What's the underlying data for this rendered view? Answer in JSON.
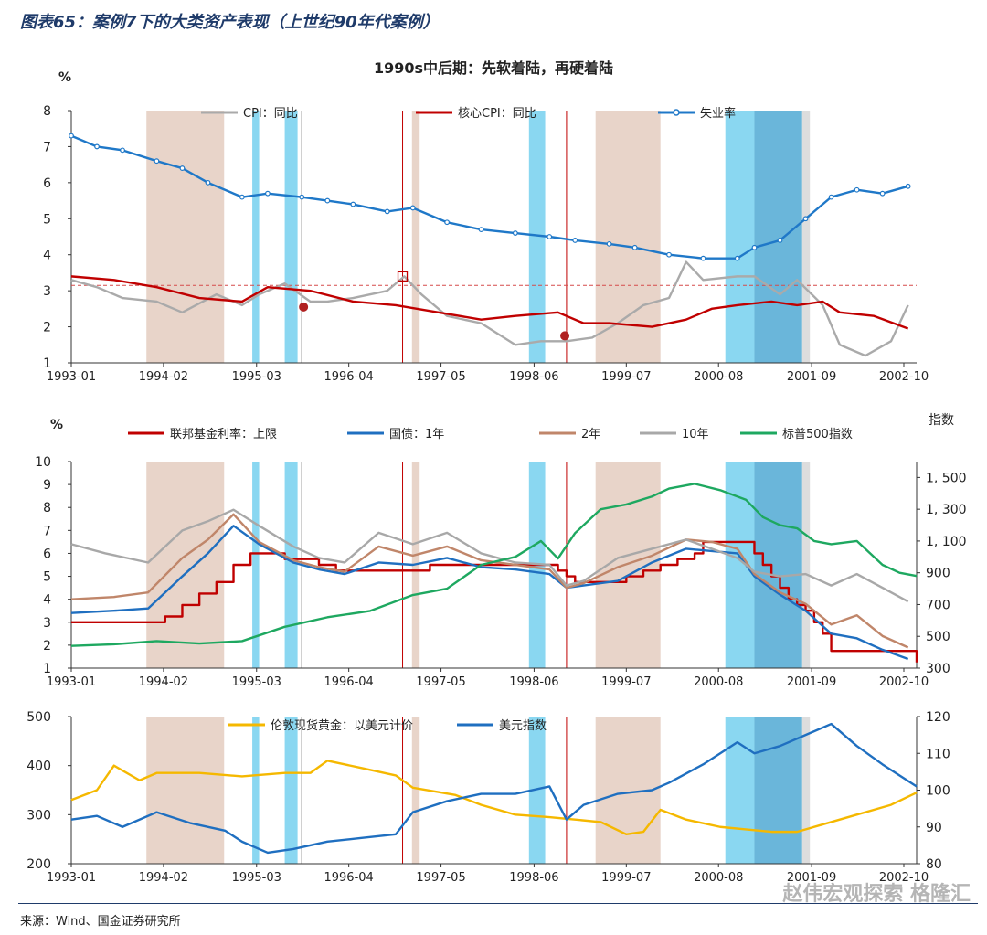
{
  "figure_title": "图表65：案例7下的大类资产表现（上世纪90年代案例）",
  "source": "来源：Wind、国金证券研究所",
  "watermark": "赵伟宏观探索 格隆汇",
  "colors": {
    "cpi": "#aaaaaa",
    "core_cpi": "#c00000",
    "unemp": "#1f78c8",
    "fed": "#c00000",
    "t1": "#1f6fc0",
    "t2": "#c0866a",
    "t10": "#a8a8a8",
    "sp500": "#1ea860",
    "gold": "#f5b800",
    "dxy": "#1f6fc0",
    "band_tan": "#e6cfc3",
    "band_blue": "#7dd3f0",
    "band_blue_dark": "#5aaed6",
    "band_gray": "#d9d9d9"
  },
  "chart_data": [
    {
      "type": "line",
      "title": "1990s中后期：先软着陆，再硬着陆",
      "ylabel": "%",
      "ylim": [
        1,
        8
      ],
      "x_ticks": [
        "1993-01",
        "1994-02",
        "1995-03",
        "1996-04",
        "1997-05",
        "1998-06",
        "1999-07",
        "2000-08",
        "2001-09",
        "2002-10"
      ],
      "y_ticks": [
        "1",
        "2",
        "3",
        "4",
        "5",
        "6",
        "7",
        "8"
      ],
      "reference_line": 3.15,
      "series": [
        {
          "name": "CPI：同比",
          "key": "cpi",
          "x": [
            1993.0,
            1993.3,
            1993.6,
            1994.0,
            1994.3,
            1994.7,
            1995.0,
            1995.2,
            1995.5,
            1995.8,
            1996.0,
            1996.3,
            1996.7,
            1996.9,
            1997.1,
            1997.4,
            1997.8,
            1998.2,
            1998.5,
            1998.8,
            1999.1,
            1999.4,
            1999.7,
            2000.0,
            2000.2,
            2000.4,
            2000.8,
            2001.0,
            2001.3,
            2001.5,
            2001.8,
            2002.0,
            2002.3,
            2002.6,
            2002.8
          ],
          "y": [
            3.3,
            3.1,
            2.8,
            2.7,
            2.4,
            2.9,
            2.6,
            2.9,
            3.2,
            2.7,
            2.7,
            2.8,
            3.0,
            3.4,
            2.9,
            2.3,
            2.1,
            1.5,
            1.6,
            1.6,
            1.7,
            2.1,
            2.6,
            2.8,
            3.8,
            3.3,
            3.4,
            3.4,
            2.9,
            3.3,
            2.6,
            1.5,
            1.2,
            1.6,
            2.6
          ]
        },
        {
          "name": "核心CPI：同比",
          "key": "core_cpi",
          "x": [
            1993.0,
            1993.5,
            1994.0,
            1994.5,
            1995.0,
            1995.3,
            1995.8,
            1996.3,
            1996.8,
            1997.3,
            1997.8,
            1998.2,
            1998.7,
            1999.0,
            1999.3,
            1999.8,
            2000.2,
            2000.5,
            2000.8,
            2001.2,
            2001.5,
            2001.8,
            2002.0,
            2002.4,
            2002.8
          ],
          "y": [
            3.4,
            3.3,
            3.1,
            2.8,
            2.7,
            3.1,
            3.0,
            2.7,
            2.6,
            2.4,
            2.2,
            2.3,
            2.4,
            2.1,
            2.1,
            2.0,
            2.2,
            2.5,
            2.6,
            2.7,
            2.6,
            2.7,
            2.4,
            2.3,
            1.95
          ]
        },
        {
          "name": "失业率",
          "key": "unemp",
          "x": [
            1993.0,
            1993.3,
            1993.6,
            1994.0,
            1994.3,
            1994.6,
            1995.0,
            1995.3,
            1995.7,
            1996.0,
            1996.3,
            1996.7,
            1997.0,
            1997.4,
            1997.8,
            1998.2,
            1998.6,
            1998.9,
            1999.3,
            1999.6,
            2000.0,
            2000.4,
            2000.8,
            2001.0,
            2001.3,
            2001.6,
            2001.9,
            2002.2,
            2002.5,
            2002.8
          ],
          "y": [
            7.3,
            7.0,
            6.9,
            6.6,
            6.4,
            6.0,
            5.6,
            5.7,
            5.6,
            5.5,
            5.4,
            5.2,
            5.3,
            4.9,
            4.7,
            4.6,
            4.5,
            4.4,
            4.3,
            4.2,
            4.0,
            3.9,
            3.9,
            4.2,
            4.4,
            5.0,
            5.6,
            5.8,
            5.7,
            5.9
          ]
        }
      ]
    },
    {
      "type": "line",
      "ylabel": "%",
      "y2label": "指数",
      "ylim": [
        1,
        10
      ],
      "y2lim": [
        300,
        1600
      ],
      "x_ticks": [
        "1993-01",
        "1994-02",
        "1995-03",
        "1996-04",
        "1997-05",
        "1998-06",
        "1999-07",
        "2000-08",
        "2001-09",
        "2002-10"
      ],
      "y_ticks": [
        "1",
        "2",
        "3",
        "4",
        "5",
        "6",
        "7",
        "8",
        "9",
        "10"
      ],
      "y2_ticks": [
        "300",
        "500",
        "700",
        "900",
        "1, 100",
        "1, 300",
        "1, 500"
      ],
      "series": [
        {
          "name": "联邦基金利率：上限",
          "key": "fed",
          "axis": "left",
          "step": true,
          "x": [
            1993.0,
            1994.1,
            1994.3,
            1994.5,
            1994.7,
            1994.9,
            1995.1,
            1995.5,
            1995.9,
            1996.1,
            1997.2,
            1998.7,
            1998.8,
            1998.9,
            1999.5,
            1999.7,
            1999.9,
            2000.1,
            2000.3,
            2000.4,
            2001.0,
            2001.1,
            2001.2,
            2001.3,
            2001.4,
            2001.5,
            2001.6,
            2001.7,
            2001.8,
            2001.9,
            2002.8,
            2002.9
          ],
          "y": [
            3.0,
            3.25,
            3.75,
            4.25,
            4.75,
            5.5,
            6.0,
            5.75,
            5.5,
            5.25,
            5.5,
            5.25,
            5.0,
            4.75,
            5.0,
            5.25,
            5.5,
            5.75,
            6.0,
            6.5,
            6.0,
            5.5,
            5.0,
            4.5,
            4.0,
            3.75,
            3.5,
            3.0,
            2.5,
            1.75,
            1.75,
            1.25
          ]
        },
        {
          "name": "国债：1年",
          "key": "t1",
          "axis": "left",
          "x": [
            1993.0,
            1993.5,
            1993.9,
            1994.3,
            1994.6,
            1994.9,
            1995.2,
            1995.6,
            1995.9,
            1996.2,
            1996.6,
            1997.0,
            1997.4,
            1997.8,
            1998.2,
            1998.6,
            1998.8,
            1999.0,
            1999.4,
            1999.8,
            2000.2,
            2000.5,
            2000.8,
            2001.0,
            2001.3,
            2001.6,
            2001.9,
            2002.2,
            2002.5,
            2002.8
          ],
          "y": [
            3.4,
            3.5,
            3.6,
            5.0,
            6.0,
            7.2,
            6.4,
            5.6,
            5.3,
            5.1,
            5.6,
            5.5,
            5.8,
            5.4,
            5.3,
            5.1,
            4.5,
            4.6,
            4.8,
            5.6,
            6.2,
            6.1,
            6.0,
            5.0,
            4.2,
            3.5,
            2.5,
            2.3,
            1.8,
            1.4
          ]
        },
        {
          "name": "2年",
          "key": "t2",
          "axis": "left",
          "x": [
            1993.0,
            1993.5,
            1993.9,
            1994.3,
            1994.6,
            1994.9,
            1995.2,
            1995.6,
            1995.9,
            1996.2,
            1996.6,
            1997.0,
            1997.4,
            1997.8,
            1998.2,
            1998.6,
            1998.8,
            1999.0,
            1999.4,
            1999.8,
            2000.2,
            2000.5,
            2000.8,
            2001.0,
            2001.3,
            2001.6,
            2001.9,
            2002.2,
            2002.5,
            2002.8
          ],
          "y": [
            4.0,
            4.1,
            4.3,
            5.8,
            6.6,
            7.7,
            6.5,
            5.7,
            5.4,
            5.2,
            6.3,
            5.9,
            6.3,
            5.7,
            5.5,
            5.3,
            4.5,
            4.7,
            5.4,
            5.9,
            6.6,
            6.5,
            6.2,
            5.1,
            4.3,
            3.8,
            2.9,
            3.3,
            2.4,
            1.9
          ]
        },
        {
          "name": "10年",
          "key": "t10",
          "axis": "left",
          "x": [
            1993.0,
            1993.4,
            1993.9,
            1994.3,
            1994.6,
            1994.9,
            1995.2,
            1995.6,
            1995.9,
            1996.2,
            1996.6,
            1997.0,
            1997.4,
            1997.8,
            1998.2,
            1998.6,
            1998.8,
            1999.0,
            1999.4,
            1999.8,
            2000.2,
            2000.5,
            2000.8,
            2001.0,
            2001.3,
            2001.6,
            2001.9,
            2002.2,
            2002.5,
            2002.8
          ],
          "y": [
            6.4,
            6.0,
            5.6,
            7.0,
            7.4,
            7.9,
            7.2,
            6.3,
            5.8,
            5.6,
            6.9,
            6.4,
            6.9,
            6.0,
            5.6,
            5.5,
            4.6,
            4.8,
            5.8,
            6.2,
            6.6,
            6.2,
            5.8,
            5.2,
            5.0,
            5.1,
            4.6,
            5.1,
            4.5,
            3.9
          ]
        },
        {
          "name": "标普500指数",
          "key": "sp500",
          "axis": "right",
          "x": [
            1993.0,
            1993.5,
            1994.0,
            1994.5,
            1995.0,
            1995.5,
            1996.0,
            1996.5,
            1997.0,
            1997.4,
            1997.8,
            1998.2,
            1998.5,
            1998.7,
            1998.9,
            1999.2,
            1999.5,
            1999.8,
            2000.0,
            2000.3,
            2000.6,
            2000.9,
            2001.1,
            2001.3,
            2001.5,
            2001.7,
            2001.9,
            2002.2,
            2002.5,
            2002.7,
            2002.9
          ],
          "y": [
            440,
            450,
            470,
            455,
            470,
            560,
            620,
            660,
            760,
            800,
            950,
            1000,
            1100,
            990,
            1150,
            1300,
            1330,
            1380,
            1430,
            1460,
            1420,
            1360,
            1250,
            1200,
            1180,
            1100,
            1080,
            1100,
            950,
            900,
            880
          ]
        }
      ]
    },
    {
      "type": "line",
      "ylim": [
        200,
        500
      ],
      "y2lim": [
        80,
        120
      ],
      "x_ticks": [
        "1993-01",
        "1994-02",
        "1995-03",
        "1996-04",
        "1997-05",
        "1998-06",
        "1999-07",
        "2000-08",
        "2001-09",
        "2002-10"
      ],
      "y_ticks": [
        "200",
        "300",
        "400",
        "500"
      ],
      "y2_ticks": [
        "80",
        "90",
        "100",
        "110",
        "120"
      ],
      "series": [
        {
          "name": "伦敦现货黄金：以美元计价",
          "key": "gold",
          "axis": "left",
          "x": [
            1993.0,
            1993.3,
            1993.5,
            1993.8,
            1994.0,
            1994.5,
            1995.0,
            1995.5,
            1995.8,
            1996.0,
            1996.4,
            1996.8,
            1997.0,
            1997.5,
            1997.8,
            1998.2,
            1998.6,
            1998.9,
            1999.2,
            1999.5,
            1999.7,
            1999.9,
            2000.2,
            2000.6,
            2000.9,
            2001.2,
            2001.5,
            2001.8,
            2002.2,
            2002.6,
            2002.9
          ],
          "y": [
            330,
            350,
            400,
            370,
            385,
            385,
            378,
            385,
            385,
            410,
            395,
            380,
            355,
            340,
            320,
            300,
            295,
            290,
            285,
            260,
            265,
            310,
            290,
            275,
            270,
            265,
            265,
            280,
            300,
            320,
            345
          ]
        },
        {
          "name": "美元指数",
          "key": "dxy",
          "axis": "right",
          "x": [
            1993.0,
            1993.3,
            1993.6,
            1994.0,
            1994.4,
            1994.8,
            1995.0,
            1995.3,
            1995.6,
            1996.0,
            1996.4,
            1996.8,
            1997.0,
            1997.4,
            1997.8,
            1998.2,
            1998.6,
            1998.8,
            1999.0,
            1999.4,
            1999.8,
            2000.0,
            2000.4,
            2000.8,
            2001.0,
            2001.3,
            2001.6,
            2001.9,
            2002.2,
            2002.5,
            2002.9
          ],
          "y": [
            92,
            93,
            90,
            94,
            91,
            89,
            86,
            83,
            84,
            86,
            87,
            88,
            94,
            97,
            99,
            99,
            101,
            92,
            96,
            99,
            100,
            102,
            107,
            113,
            110,
            112,
            115,
            118,
            112,
            107,
            101
          ]
        }
      ]
    }
  ]
}
